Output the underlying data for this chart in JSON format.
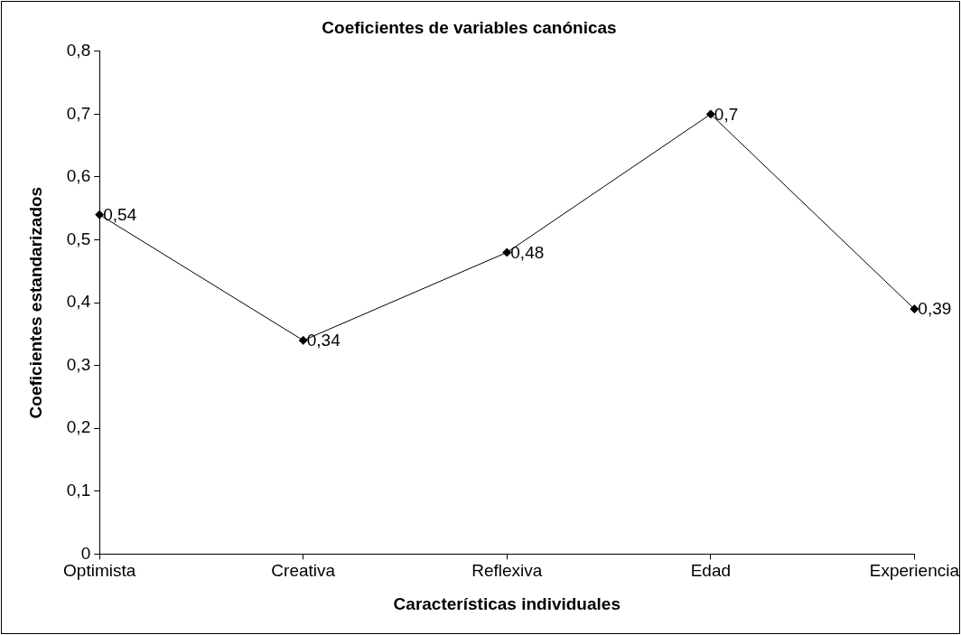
{
  "chart_data": {
    "type": "line",
    "title": "Coeficientes de variables canónicas",
    "xlabel": "Características individuales",
    "ylabel": "Coeficientes estandarizados",
    "categories": [
      "Optimista",
      "Creativa",
      "Reflexiva",
      "Edad",
      "Experiencia"
    ],
    "series": [
      {
        "color": "#000000",
        "values": [
          0.54,
          0.34,
          0.48,
          0.7,
          0.39
        ],
        "value_labels": [
          "0,54",
          "0,34",
          "0,48",
          "0,7",
          "0,39"
        ]
      }
    ],
    "ylim": [
      0,
      0.8
    ],
    "yticks": [
      0,
      {
        "value": 0.1,
        "label": "0,1"
      },
      {
        "value": 0.2,
        "label": "0,2"
      },
      {
        "value": 0.3,
        "label": "0,3"
      },
      {
        "value": 0.4,
        "label": "0,4"
      },
      {
        "value": 0.5,
        "label": "0,5"
      },
      {
        "value": 0.6,
        "label": "0,6"
      },
      {
        "value": 0.7,
        "label": "0,7"
      },
      {
        "value": 0.8,
        "label": "0,8"
      }
    ],
    "grid": false,
    "legend": false,
    "marker": "diamond",
    "line_style": "solid"
  }
}
